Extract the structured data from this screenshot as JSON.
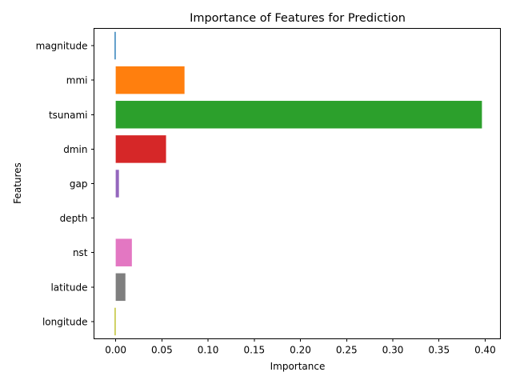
{
  "chart_data": {
    "type": "bar",
    "orientation": "horizontal",
    "title": "Importance of Features for Prediction",
    "xlabel": "Importance",
    "ylabel": "Features",
    "categories": [
      "magnitude",
      "mmi",
      "tsunami",
      "dmin",
      "gap",
      "depth",
      "nst",
      "latitude",
      "longitude"
    ],
    "values": [
      -0.0012,
      0.0745,
      0.3965,
      0.0545,
      0.0035,
      0.0,
      0.0175,
      0.0105,
      -0.0012
    ],
    "colors": [
      "#1f77b4",
      "#ff7f0e",
      "#2ca02c",
      "#d62728",
      "#9467bd",
      "#8c564b",
      "#e377c2",
      "#7f7f7f",
      "#bcbd22"
    ],
    "xticks": [
      0.0,
      0.05,
      0.1,
      0.15,
      0.2,
      0.25,
      0.3,
      0.35,
      0.4
    ],
    "xtick_labels": [
      "0.00",
      "0.05",
      "0.10",
      "0.15",
      "0.20",
      "0.25",
      "0.30",
      "0.35",
      "0.40"
    ],
    "xlim": [
      -0.0235,
      0.4165
    ],
    "grid": false,
    "legend": "none"
  }
}
